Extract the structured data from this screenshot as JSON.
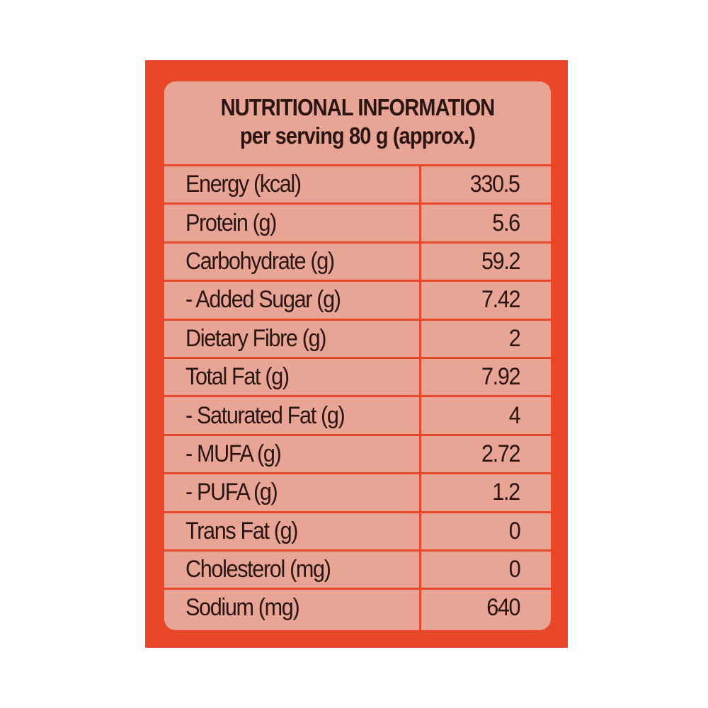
{
  "header": {
    "title": "NUTRITIONAL INFORMATION",
    "subtitle": "per serving 80 g (approx.)"
  },
  "table": {
    "rows": [
      [
        "Energy (kcal)",
        "330.5"
      ],
      [
        "Protein (g)",
        "5.6"
      ],
      [
        "Carbohydrate (g)",
        "59.2"
      ],
      [
        "- Added Sugar (g)",
        "7.42"
      ],
      [
        "Dietary Fibre (g)",
        "2"
      ],
      [
        "Total Fat (g)",
        "7.92"
      ],
      [
        "- Saturated Fat (g)",
        "4"
      ],
      [
        "- MUFA (g)",
        "2.72"
      ],
      [
        "- PUFA (g)",
        "1.2"
      ],
      [
        "Trans Fat (g)",
        "0"
      ],
      [
        "Cholesterol (mg)",
        "0"
      ],
      [
        "Sodium (mg)",
        "640"
      ]
    ]
  }
}
